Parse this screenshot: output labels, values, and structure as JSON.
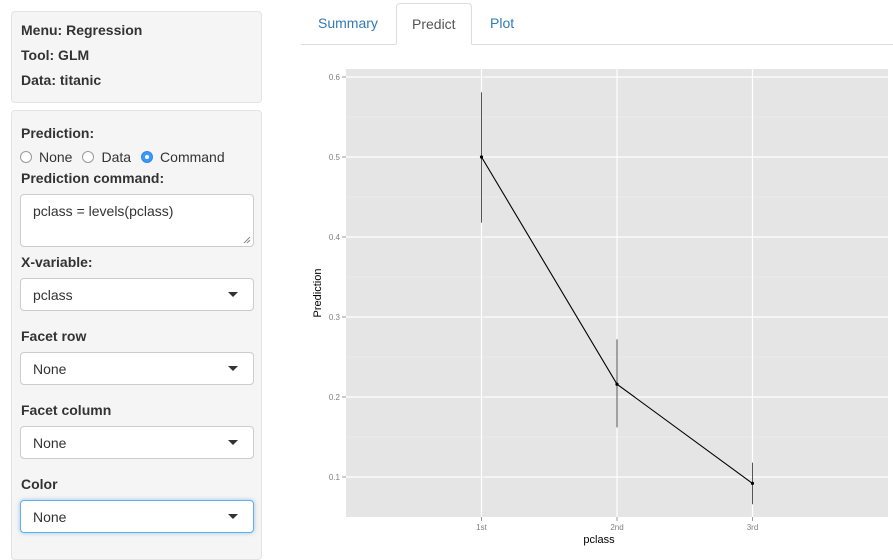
{
  "sidebar": {
    "menu": "Menu: Regression",
    "tool": "Tool: GLM",
    "data": "Data: titanic",
    "prediction_label": "Prediction:",
    "prediction_options": [
      "None",
      "Data",
      "Command"
    ],
    "prediction_selected": "Command",
    "command_label": "Prediction command:",
    "command_value": "pclass = levels(pclass)",
    "xvar_label": "X-variable:",
    "xvar_value": "pclass",
    "facet_row_label": "Facet row",
    "facet_row_value": "None",
    "facet_col_label": "Facet column",
    "facet_col_value": "None",
    "color_label": "Color",
    "color_value": "None"
  },
  "tabs": {
    "summary": "Summary",
    "predict": "Predict",
    "plot": "Plot",
    "active": "Predict"
  },
  "chart_data": {
    "type": "line",
    "categories": [
      "1st",
      "2nd",
      "3rd"
    ],
    "values": [
      0.5,
      0.216,
      0.092
    ],
    "lower": [
      0.418,
      0.162,
      0.066
    ],
    "upper": [
      0.581,
      0.272,
      0.118
    ],
    "xlabel": "pclass",
    "ylabel": "Prediction",
    "ylim": [
      0.05,
      0.61
    ],
    "yticks": [
      0.1,
      0.2,
      0.3,
      0.4,
      0.5,
      0.6
    ],
    "grid": true,
    "background": "#e5e5e5",
    "line_color": "#000000"
  }
}
